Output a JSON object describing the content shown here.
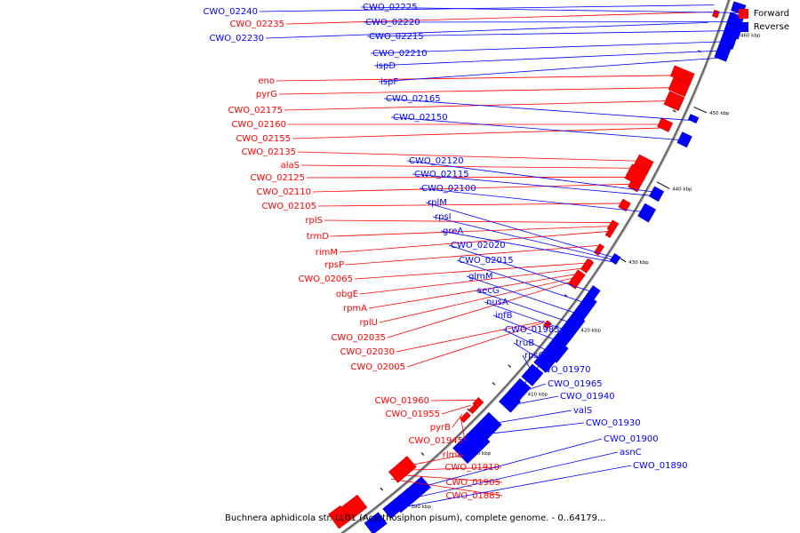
{
  "legend": {
    "forward_label": "Forward",
    "reverse_label": "Reverse",
    "forward_color": "#ff0000",
    "reverse_color": "#0000ff"
  },
  "colors": {
    "backbone": "#888888",
    "label_line_fwd": "#ff0000",
    "label_line_rev": "#0000ff"
  },
  "caption": "Buchnera aphidicola str. LL01 (Acyrthosiphon pisum), complete genome. - 0..64179...",
  "ticks": [
    "460 kbp",
    "450 kbp",
    "440 kbp",
    "430 kbp",
    "420 kbp",
    "410 kbp",
    "400 kbp",
    "390 kbp"
  ],
  "forward_labels": [
    "CWO_02235",
    "eno",
    "pyrG",
    "CWO_02175",
    "CWO_02160",
    "CWO_02155",
    "CWO_02135",
    "alaS",
    "CWO_02125",
    "CWO_02110",
    "CWO_02105",
    "rplS",
    "trmD",
    "rimM",
    "rpsP",
    "CWO_02065",
    "obgE",
    "rpmA",
    "rplU",
    "CWO_02035",
    "CWO_02030",
    "CWO_02005",
    "CWO_01960",
    "CWO_01955",
    "pyrB",
    "CWO_01945",
    "rlmL",
    "CWO_01910",
    "CWO_01905",
    "CWO_01885"
  ],
  "reverse_left_labels": [
    "CWO_02240",
    "CWO_02230"
  ],
  "reverse_right_labels": [
    "CWO_02225",
    "CWO_02220",
    "CWO_02215",
    "CWO_02210",
    "ispD",
    "ispF",
    "CWO_02165",
    "CWO_02150",
    "CWO_02120",
    "CWO_02115",
    "CWO_02100",
    "rplM",
    "rpsI",
    "greA",
    "CWO_02020",
    "CWO_02015",
    "glmM",
    "secG",
    "nusA",
    "infB",
    "CWO_01985",
    "truB",
    "rpsO",
    "CWO_01970",
    "CWO_01965",
    "CWO_01940",
    "valS",
    "CWO_01930",
    "CWO_01900",
    "asnC",
    "CWO_01890"
  ]
}
